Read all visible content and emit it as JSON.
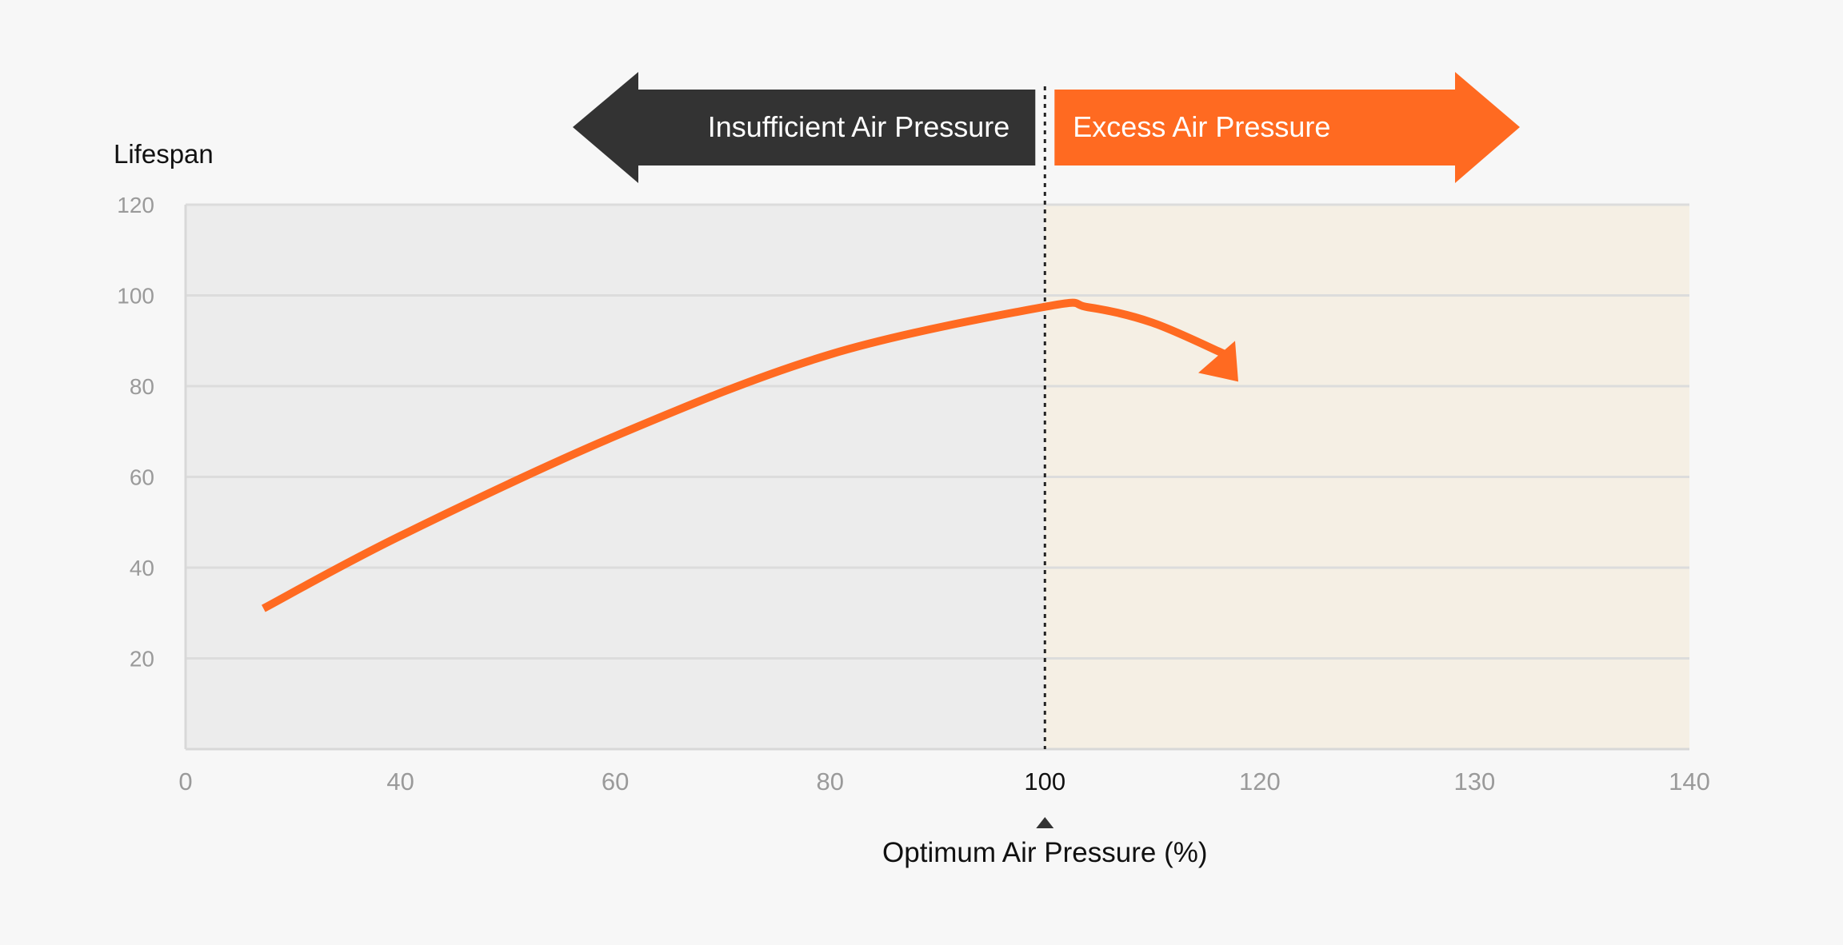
{
  "chart_data": {
    "type": "line",
    "ylabel": "Lifespan",
    "xlabel": "Optimum Air Pressure (%)",
    "x_ticks": [
      0,
      40,
      60,
      80,
      100,
      120,
      130,
      140
    ],
    "highlighted_x_tick": 100,
    "y_ticks": [
      20,
      40,
      60,
      80,
      100,
      120
    ],
    "ylim": [
      0,
      120
    ],
    "grid": "horizontal",
    "regions": [
      {
        "label": "Insufficient Air Pressure",
        "from": 0,
        "to": 100,
        "color": "#ececec",
        "arrow_color": "#333333",
        "direction": "left"
      },
      {
        "label": "Excess Air Pressure",
        "from": 100,
        "to": 140,
        "color": "#f5efe4",
        "arrow_color": "#ff6a21",
        "direction": "right"
      }
    ],
    "reference_line": {
      "x": 100,
      "style": "dotted"
    },
    "series": [
      {
        "color": "#ff6a21",
        "points": [
          [
            14.5,
            31
          ],
          [
            40,
            47
          ],
          [
            60,
            69
          ],
          [
            80,
            87
          ],
          [
            100,
            97.5
          ],
          [
            104,
            97.4
          ],
          [
            110,
            94
          ],
          [
            116.6,
            87.2
          ]
        ],
        "arrow_tip": [
          118,
          81
        ]
      }
    ]
  }
}
